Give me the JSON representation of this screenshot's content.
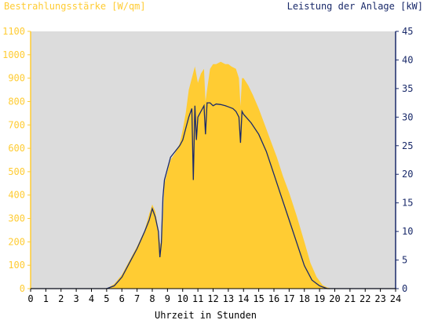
{
  "chart_data": {
    "type": "area",
    "title_left": "Bestrahlungsstärke [W/qm]",
    "title_right": "Leistung der Anlage [kW]",
    "xlabel": "Uhrzeit in Stunden",
    "xlim": [
      0,
      24
    ],
    "x_ticks": [
      "0",
      "1",
      "2",
      "3",
      "4",
      "5",
      "6",
      "7",
      "8",
      "9",
      "10",
      "11",
      "12",
      "13",
      "14",
      "15",
      "16",
      "17",
      "18",
      "19",
      "20",
      "21",
      "22",
      "23",
      "24"
    ],
    "y_left": {
      "label": "Bestrahlungsstärke [W/qm]",
      "lim": [
        0,
        1100
      ],
      "ticks": [
        "0",
        "100",
        "200",
        "300",
        "400",
        "500",
        "600",
        "700",
        "800",
        "900",
        "1000",
        "1100"
      ]
    },
    "y_right": {
      "label": "Leistung der Anlage [kW]",
      "lim": [
        0,
        45
      ],
      "ticks": [
        "0",
        "5",
        "10",
        "15",
        "20",
        "25",
        "30",
        "35",
        "40",
        "45"
      ]
    },
    "grid": false,
    "colors": {
      "plot_bg": "#dcdcdc",
      "irradiance": "#ffcc33",
      "power": "#1a2a6a",
      "axis_left": "#ffcc33",
      "axis_right": "#1a2a6a",
      "axis_bottom": "#000000"
    },
    "series": [
      {
        "axis": "left",
        "style": "area",
        "x": [
          0,
          5.0,
          5.5,
          6.0,
          6.5,
          7.0,
          7.5,
          7.8,
          8.0,
          8.2,
          8.4,
          8.5,
          8.6,
          8.7,
          8.8,
          9.0,
          9.2,
          9.5,
          9.8,
          10.0,
          10.2,
          10.4,
          10.6,
          10.8,
          11.0,
          11.2,
          11.4,
          11.5,
          11.6,
          11.8,
          12.0,
          12.2,
          12.5,
          12.8,
          13.0,
          13.2,
          13.5,
          13.7,
          13.8,
          13.9,
          14.0,
          14.3,
          14.6,
          15.0,
          15.4,
          15.8,
          16.2,
          16.6,
          17.0,
          17.5,
          18.0,
          18.4,
          18.8,
          19.2,
          19.5,
          19.8,
          20.0,
          24
        ],
        "y": [
          0,
          0,
          20,
          60,
          120,
          180,
          250,
          320,
          360,
          330,
          250,
          200,
          180,
          300,
          450,
          500,
          550,
          580,
          620,
          680,
          750,
          850,
          900,
          950,
          880,
          920,
          940,
          800,
          850,
          940,
          960,
          960,
          970,
          960,
          960,
          950,
          940,
          900,
          780,
          900,
          900,
          870,
          830,
          770,
          700,
          630,
          560,
          480,
          410,
          310,
          200,
          110,
          50,
          15,
          5,
          0,
          0,
          0
        ]
      },
      {
        "axis": "right",
        "style": "line",
        "x": [
          0,
          5.0,
          5.5,
          6.0,
          6.5,
          7.0,
          7.5,
          7.8,
          8.0,
          8.2,
          8.4,
          8.5,
          8.6,
          8.7,
          8.8,
          9.0,
          9.2,
          9.5,
          9.8,
          10.0,
          10.2,
          10.4,
          10.6,
          10.7,
          10.8,
          10.9,
          11.0,
          11.2,
          11.4,
          11.5,
          11.6,
          11.8,
          12.0,
          12.2,
          12.5,
          12.8,
          13.0,
          13.3,
          13.5,
          13.7,
          13.8,
          13.9,
          14.0,
          14.5,
          15.0,
          15.5,
          16.0,
          16.5,
          17.0,
          17.5,
          18.0,
          18.5,
          19.0,
          19.5,
          20.0,
          24
        ],
        "y": [
          0,
          0,
          0.5,
          2,
          4.5,
          7,
          10,
          12,
          14,
          12.5,
          10,
          5.5,
          8,
          16,
          19,
          21,
          23,
          24,
          25,
          26,
          28,
          30,
          31.5,
          19,
          32,
          26,
          30,
          31,
          32,
          27,
          32.5,
          32.5,
          32,
          32.3,
          32.2,
          32,
          31.8,
          31.5,
          31,
          30,
          25.5,
          31,
          30.5,
          29,
          27,
          24,
          20,
          16,
          12,
          8,
          4,
          1.5,
          0.5,
          0,
          0,
          0
        ]
      }
    ]
  }
}
